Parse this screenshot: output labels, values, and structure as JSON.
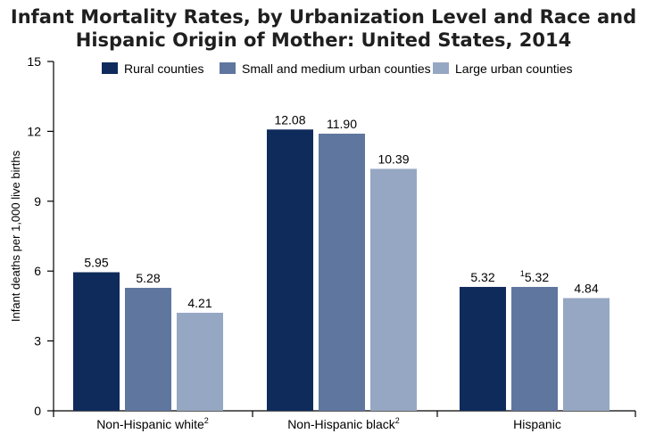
{
  "chart_data": {
    "type": "bar",
    "title_lines": [
      "Infant Mortality Rates, by Urbanization Level and Race and",
      "Hispanic Origin of Mother: United States, 2014"
    ],
    "ylabel": "Infant deaths per 1,000 live births",
    "ylim": [
      0,
      15
    ],
    "yticks": [
      "0",
      "3",
      "6",
      "9",
      "12",
      "15"
    ],
    "categories": [
      {
        "label": "Non-Hispanic white",
        "sup": "2"
      },
      {
        "label": "Non-Hispanic black",
        "sup": "2"
      },
      {
        "label": "Hispanic",
        "sup": ""
      }
    ],
    "series": [
      {
        "name": "Rural counties",
        "color": "#0f2b5b",
        "values": [
          5.95,
          12.08,
          5.32
        ],
        "labels": [
          "5.95",
          "12.08",
          "5.32"
        ],
        "label_sups": [
          "",
          "",
          ""
        ]
      },
      {
        "name": "Small and medium urban counties",
        "color": "#5f769f",
        "values": [
          5.28,
          11.9,
          5.32
        ],
        "labels": [
          "5.28",
          "11.90",
          "5.32"
        ],
        "label_sups": [
          "",
          "",
          "1"
        ]
      },
      {
        "name": "Large urban counties",
        "color": "#96a7c3",
        "values": [
          4.21,
          10.39,
          4.84
        ],
        "labels": [
          "4.21",
          "10.39",
          "4.84"
        ],
        "label_sups": [
          "",
          "",
          ""
        ]
      }
    ],
    "legend_position": "top"
  }
}
